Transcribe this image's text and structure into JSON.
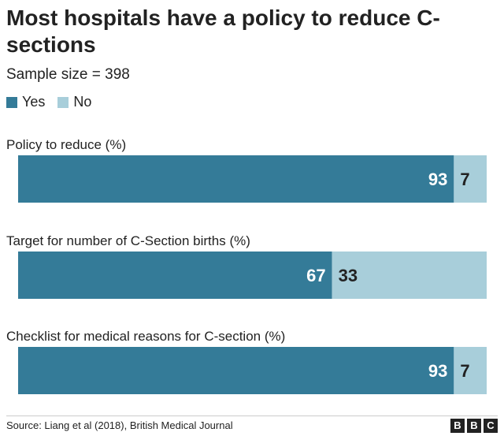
{
  "header": {
    "title": "Most hospitals have a policy to reduce C-sections",
    "subtitle": "Sample size = 398"
  },
  "legend": {
    "yes_label": "Yes",
    "no_label": "No"
  },
  "colors": {
    "yes": "#347b98",
    "no": "#a8ceda"
  },
  "chart_data": {
    "type": "bar",
    "orientation": "horizontal",
    "stacked": true,
    "title": "Most hospitals have a policy to reduce C-sections",
    "subtitle": "Sample size = 398",
    "categories": [
      "Policy to reduce (%)",
      "Target for number of C-Section births (%)",
      "Checklist for medical reasons for C-section (%)"
    ],
    "series": [
      {
        "name": "Yes",
        "values": [
          93,
          67,
          93
        ]
      },
      {
        "name": "No",
        "values": [
          7,
          33,
          7
        ]
      }
    ],
    "xlim": [
      0,
      100
    ],
    "legend_position": "top-left"
  },
  "footer": {
    "source": "Source: Liang et al (2018), British Medical Journal",
    "logo_letters": [
      "B",
      "B",
      "C"
    ]
  }
}
